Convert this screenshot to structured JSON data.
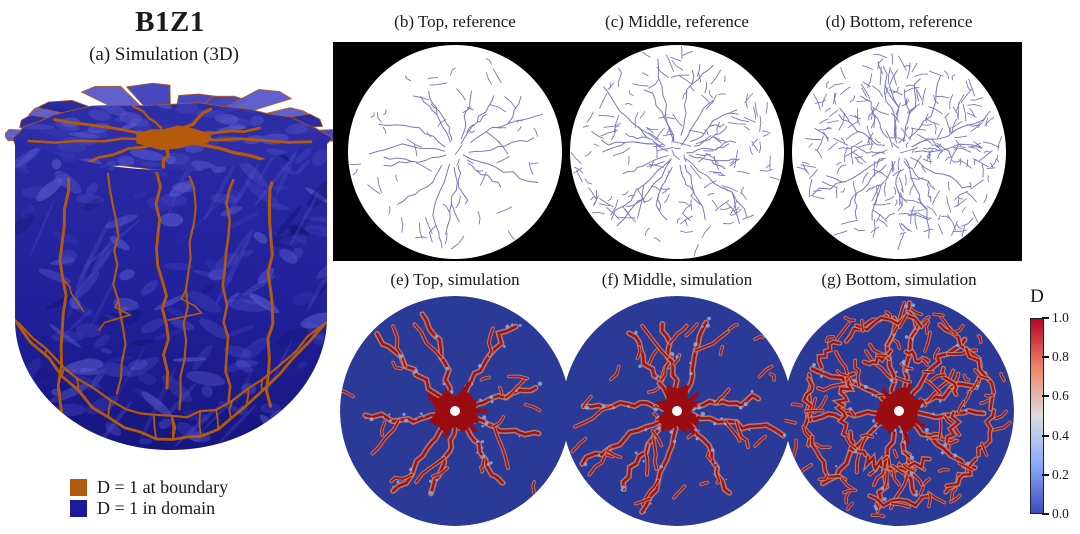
{
  "figure": {
    "left_panel": {
      "title": "B1Z1",
      "subtitle": "(a) Simulation (3D)",
      "legend": [
        {
          "label": "D = 1 at boundary",
          "color": "#b35a0c"
        },
        {
          "label": "D = 1 in domain",
          "color": "#1a1a9c"
        }
      ]
    },
    "reference_row": {
      "background": "#000000",
      "disk_color": "#ffffff",
      "crack_color": "#6a6ab5",
      "panels": [
        {
          "label": "(b) Top, reference",
          "rays": 15,
          "scatter": 55,
          "seed": 11
        },
        {
          "label": "(c) Middle, reference",
          "rays": 18,
          "scatter": 160,
          "seed": 22
        },
        {
          "label": "(d) Bottom, reference",
          "rays": 16,
          "scatter": 260,
          "seed": 33
        }
      ]
    },
    "simulation_row": {
      "disk_color": "#2c3a97",
      "crack_core": "#a31216",
      "crack_fringe": "#cf8b6d",
      "speck_color": "#93aed6",
      "center_blob": "#9a0c10",
      "hole_color": "#ffffff",
      "panels": [
        {
          "label": "(e) Top, simulation",
          "rays": 9,
          "rings": 0,
          "scatter": 10,
          "branch": 1,
          "seed": 44
        },
        {
          "label": "(f) Middle, simulation",
          "rays": 10,
          "rings": 0,
          "scatter": 24,
          "branch": 2,
          "seed": 55
        },
        {
          "label": "(g) Bottom, simulation",
          "rays": 11,
          "rings": 2,
          "scatter": 75,
          "branch": 3,
          "seed": 66
        }
      ]
    },
    "colorbar": {
      "title": "D",
      "ticks": [
        "1.0",
        "0.8",
        "0.6",
        "0.4",
        "0.2",
        "0.0"
      ],
      "gradient": [
        "#b40426",
        "#ee8468",
        "#dddcdc",
        "#88abfd",
        "#3b4cc0"
      ]
    },
    "render3d": {
      "seed": 7,
      "body_top": "#2a2aa6",
      "body_mid": "#20209a",
      "body_bottom": "#16167e",
      "top_face": "#2d2da6",
      "petal_colors": [
        "#2626a0",
        "#4343bc",
        "#5b5bce"
      ],
      "patch_light": "#5d5dd0",
      "patch_mid": "#4040bc",
      "patch_dark": "#12126e",
      "boundary_orange": "#b35a0c"
    }
  }
}
